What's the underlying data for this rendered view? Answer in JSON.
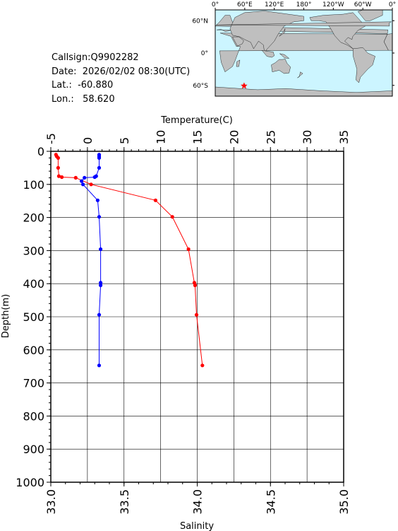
{
  "station": {
    "callsign": "Callsign:Q9902282",
    "date": "Date:  2026/02/02 08:30(UTC)",
    "lat": "Lat.:  -60.880",
    "lon": "Lon.:   58.620"
  },
  "map": {
    "lon_labels": [
      "0°",
      "60°E",
      "120°E",
      "180°",
      "120°W",
      "60°W",
      "0°"
    ],
    "lat_labels": [
      "60°N",
      "0°",
      "60°S"
    ],
    "ocean_color": "#ccf5ff",
    "land_color": "#bfbfbf",
    "marker_color": "#ff0000",
    "marker": {
      "lon": 58.62,
      "lat": -60.88
    }
  },
  "chart_data": {
    "type": "line",
    "top_axis_label": "Temperature(C)",
    "bottom_axis_label": "Salinity",
    "ylabel": "Depth(m)",
    "temperature_range": [
      -5,
      35
    ],
    "temperature_ticks": [
      "-5",
      "0",
      "5",
      "10",
      "15",
      "20",
      "25",
      "30",
      "35"
    ],
    "salinity_range": [
      33.0,
      35.0
    ],
    "salinity_ticks": [
      "33.0",
      "33.5",
      "34.0",
      "34.5",
      "35.0"
    ],
    "depth_range": [
      0,
      1000
    ],
    "depth_ticks": [
      "0",
      "100",
      "200",
      "300",
      "400",
      "500",
      "600",
      "700",
      "800",
      "900",
      "1000"
    ],
    "grid": true,
    "series": [
      {
        "axis": "temperature",
        "color": "#ff0000",
        "depth": [
          10,
          15,
          20,
          50,
          75,
          78,
          80,
          100,
          148,
          198,
          296,
          397,
          405,
          494,
          647
        ],
        "values": [
          -4.3,
          -4.2,
          -4.0,
          -4.0,
          -3.9,
          -3.5,
          -1.6,
          0.5,
          9.3,
          11.6,
          13.8,
          14.6,
          14.7,
          14.9,
          15.7
        ]
      },
      {
        "axis": "salinity",
        "color": "#0000ff",
        "depth": [
          10,
          15,
          20,
          50,
          75,
          78,
          80,
          90,
          100,
          148,
          198,
          296,
          397,
          405,
          494,
          647
        ],
        "values": [
          33.33,
          33.33,
          33.33,
          33.33,
          33.31,
          33.3,
          33.23,
          33.21,
          33.22,
          33.32,
          33.33,
          33.34,
          33.34,
          33.34,
          33.33,
          33.33
        ]
      }
    ]
  }
}
